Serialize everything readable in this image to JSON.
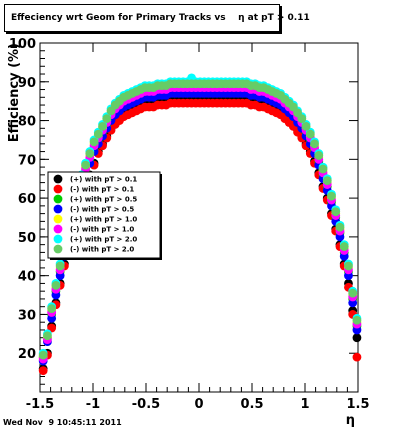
{
  "title": "Effeciency wrt Geom for Primary Tracks vs    η at pT > 0.11",
  "timestamp": "Wed Nov  9 10:45:11 2011",
  "chart_data": {
    "type": "scatter",
    "title": "Effeciency wrt Geom for Primary Tracks vs    η at pT > 0.11",
    "xlabel": "η",
    "ylabel": "Efficiency (%)",
    "xlim": [
      -1.5,
      1.5
    ],
    "ylim": [
      10,
      100
    ],
    "xticks": [
      -1.5,
      -1,
      -0.5,
      0,
      0.5,
      1,
      1.5
    ],
    "xtick_labels": [
      "-1.5",
      "-1",
      "-0.5",
      "0",
      "0.5",
      "1",
      "1.5"
    ],
    "yticks": [
      20,
      30,
      40,
      50,
      60,
      70,
      80,
      90,
      100
    ],
    "ytick_labels": [
      "20",
      "30",
      "40",
      "50",
      "60",
      "70",
      "80",
      "90",
      "100"
    ],
    "grid": false,
    "legend_position": "left-middle",
    "x": [
      -1.47,
      -1.43,
      -1.39,
      -1.35,
      -1.31,
      -1.27,
      -1.23,
      -1.19,
      -1.15,
      -1.11,
      -1.07,
      -1.03,
      -0.99,
      -0.95,
      -0.91,
      -0.87,
      -0.83,
      -0.79,
      -0.75,
      -0.71,
      -0.67,
      -0.63,
      -0.59,
      -0.55,
      -0.51,
      -0.47,
      -0.43,
      -0.39,
      -0.35,
      -0.31,
      -0.27,
      -0.23,
      -0.19,
      -0.15,
      -0.11,
      -0.07,
      -0.03,
      0.01,
      0.05,
      0.09,
      0.13,
      0.17,
      0.21,
      0.25,
      0.29,
      0.33,
      0.37,
      0.41,
      0.45,
      0.49,
      0.53,
      0.57,
      0.61,
      0.65,
      0.69,
      0.73,
      0.77,
      0.81,
      0.85,
      0.89,
      0.93,
      0.97,
      1.01,
      1.05,
      1.09,
      1.13,
      1.17,
      1.21,
      1.25,
      1.29,
      1.33,
      1.37,
      1.41,
      1.45,
      1.49
    ],
    "series": [
      {
        "name": "(+) with pT > 0.1",
        "color": "#000000",
        "values": [
          16,
          20,
          27,
          33,
          38,
          43,
          48,
          52,
          56,
          60,
          63,
          66,
          69,
          72,
          74,
          76,
          78,
          79.5,
          80.5,
          81.5,
          82,
          82.5,
          83,
          83.5,
          84,
          84,
          84,
          84.5,
          84.5,
          84.5,
          85,
          85,
          85,
          85,
          85,
          85,
          85,
          85,
          85,
          85,
          85,
          85,
          85,
          85,
          85,
          85,
          85,
          85,
          85,
          84.5,
          84.5,
          84,
          84,
          83.5,
          83,
          82.5,
          82,
          81,
          80,
          79,
          77.5,
          76,
          74,
          72,
          69.5,
          66.5,
          63,
          60,
          56,
          52,
          48,
          43,
          38,
          31,
          24
        ]
      },
      {
        "name": "(-) with pT > 0.1",
        "color": "#ff0000",
        "values": [
          15.5,
          19.5,
          26.5,
          32.5,
          37.5,
          42.5,
          47.5,
          51.5,
          55.5,
          59.5,
          62.5,
          65.5,
          68.5,
          71.5,
          73.5,
          75.5,
          77.5,
          79,
          80,
          81,
          81.5,
          82,
          82.5,
          83,
          83.5,
          83.5,
          83.5,
          84,
          84,
          84,
          84.5,
          84.5,
          84.5,
          84.5,
          84.5,
          84.5,
          84.5,
          84.5,
          84.5,
          84.5,
          84.5,
          84.5,
          84.5,
          84.5,
          84.5,
          84.5,
          84.5,
          84.5,
          84.5,
          84,
          84,
          83.5,
          83.5,
          83,
          82.5,
          82,
          81.5,
          80.5,
          79.5,
          78.5,
          77,
          75.5,
          73.5,
          71.5,
          69,
          66,
          62.5,
          59.5,
          55.5,
          51.5,
          47.5,
          42.5,
          37,
          30,
          19
        ]
      },
      {
        "name": "(+) with pT > 0.5",
        "color": "#00cc00",
        "values": [
          19,
          24,
          30,
          36,
          41,
          46,
          51,
          56,
          60,
          64,
          67,
          70,
          73,
          75,
          77,
          79,
          81,
          82.5,
          83.5,
          84.5,
          85,
          85.5,
          86,
          86.5,
          87,
          87,
          87,
          87.5,
          87.5,
          87.5,
          88,
          88,
          88,
          88,
          88,
          88,
          88,
          88,
          88,
          88,
          88,
          88,
          88,
          88,
          88,
          88,
          88,
          88,
          88,
          87.5,
          87.5,
          87,
          87,
          86.5,
          86,
          85.5,
          85,
          84,
          83,
          82,
          80.5,
          79,
          77,
          75,
          72.5,
          69.5,
          66,
          63,
          59,
          55,
          51,
          46,
          41,
          34,
          27
        ]
      },
      {
        "name": "(-) with pT > 0.5",
        "color": "#0000ff",
        "values": [
          18,
          23,
          29,
          35,
          40,
          45,
          50,
          55,
          59,
          63,
          66,
          69,
          72,
          74,
          76,
          78,
          80,
          81.5,
          82.5,
          83.5,
          84,
          84.5,
          85,
          85.5,
          86,
          86,
          86,
          86.5,
          86.5,
          86.5,
          87,
          87,
          87,
          87,
          87,
          87,
          87,
          87,
          87,
          87,
          87,
          87,
          87,
          87,
          87,
          87,
          87,
          87,
          87,
          86.5,
          86.5,
          86,
          86,
          85.5,
          85,
          84.5,
          84,
          83,
          82,
          81,
          79.5,
          78,
          76,
          74,
          71.5,
          68.5,
          65,
          62,
          58,
          54,
          50,
          45,
          40,
          33,
          26
        ]
      },
      {
        "name": "(+) with pT > 1.0",
        "color": "#ffff00",
        "values": [
          19,
          24,
          31,
          37,
          42,
          47,
          52,
          57,
          61,
          65,
          68,
          71,
          74,
          76,
          78,
          80,
          82,
          83.5,
          84.5,
          85.5,
          86,
          86.5,
          87,
          87.5,
          88,
          88,
          88,
          88.5,
          88.5,
          88.5,
          89,
          89,
          89,
          89,
          89,
          89,
          89,
          89,
          89,
          89,
          89,
          89,
          89,
          89,
          89,
          89,
          89,
          89,
          89,
          88.5,
          88.5,
          88,
          88,
          87.5,
          87,
          86.5,
          86,
          85,
          84,
          83,
          81.5,
          80,
          78,
          76,
          73.5,
          70.5,
          67,
          64,
          60,
          56,
          52,
          47,
          42,
          35,
          28
        ]
      },
      {
        "name": "(-) with pT > 1.0",
        "color": "#ff00ff",
        "values": [
          18.5,
          23.5,
          30.5,
          36.5,
          41.5,
          46.5,
          51.5,
          56.5,
          60.5,
          64.5,
          67.5,
          70.5,
          73.5,
          75.5,
          77.5,
          79.5,
          81.5,
          83,
          84,
          85,
          85.5,
          86,
          86.5,
          87,
          87.5,
          87.5,
          87.5,
          88,
          88,
          88,
          88.5,
          88.5,
          88.5,
          88.5,
          88.5,
          88.5,
          88.5,
          88.5,
          88.5,
          88.5,
          88.5,
          88.5,
          88.5,
          88.5,
          88.5,
          88.5,
          88.5,
          88.5,
          88.5,
          88,
          88,
          87.5,
          87.5,
          87,
          86.5,
          86,
          85.5,
          84.5,
          83.5,
          82.5,
          81,
          79.5,
          77.5,
          75.5,
          73,
          70,
          66.5,
          63.5,
          59.5,
          55.5,
          51.5,
          46.5,
          41.5,
          34.5,
          27.5
        ]
      },
      {
        "name": "(+) with pT > 2.0",
        "color": "#00ffff",
        "values": [
          20,
          25,
          32,
          38,
          43,
          48,
          53,
          58,
          62,
          66,
          69,
          72,
          75,
          77,
          79,
          81,
          83,
          84.5,
          85.5,
          86.5,
          87,
          87.5,
          88,
          88.5,
          89,
          89,
          89,
          89.5,
          89.5,
          89.5,
          90,
          90,
          90,
          90,
          90,
          91,
          90,
          90,
          90,
          90,
          90,
          90,
          90,
          90,
          90,
          90,
          90,
          90,
          90,
          89.5,
          89.5,
          89,
          89,
          88.5,
          88,
          87.5,
          87,
          86,
          85,
          84,
          82.5,
          81,
          79,
          77,
          74.5,
          71.5,
          68,
          65,
          61,
          57,
          53,
          48,
          43,
          36,
          29
        ]
      },
      {
        "name": "(-) with pT > 2.0",
        "color": "#66cc66",
        "values": [
          19.5,
          24.5,
          31.5,
          37.5,
          42.5,
          47.5,
          52.5,
          57.5,
          61.5,
          65.5,
          68.5,
          71.5,
          74.5,
          76.5,
          78.5,
          80.5,
          82.5,
          84,
          85,
          86,
          86.5,
          87,
          87.5,
          88,
          88.5,
          88.5,
          88.5,
          89,
          89,
          89,
          89.5,
          89.5,
          89.5,
          89.5,
          89.5,
          89.5,
          89.5,
          89.5,
          89.5,
          89.5,
          89.5,
          89.5,
          89.5,
          89.5,
          89.5,
          89.5,
          89.5,
          89.5,
          89.5,
          89,
          89,
          88.5,
          88.5,
          88,
          87.5,
          87,
          86.5,
          85.5,
          84.5,
          83.5,
          82,
          80.5,
          78.5,
          76.5,
          74,
          71,
          67.5,
          64.5,
          60.5,
          56.5,
          52.5,
          47.5,
          42.5,
          35.5,
          28.5
        ]
      }
    ]
  }
}
